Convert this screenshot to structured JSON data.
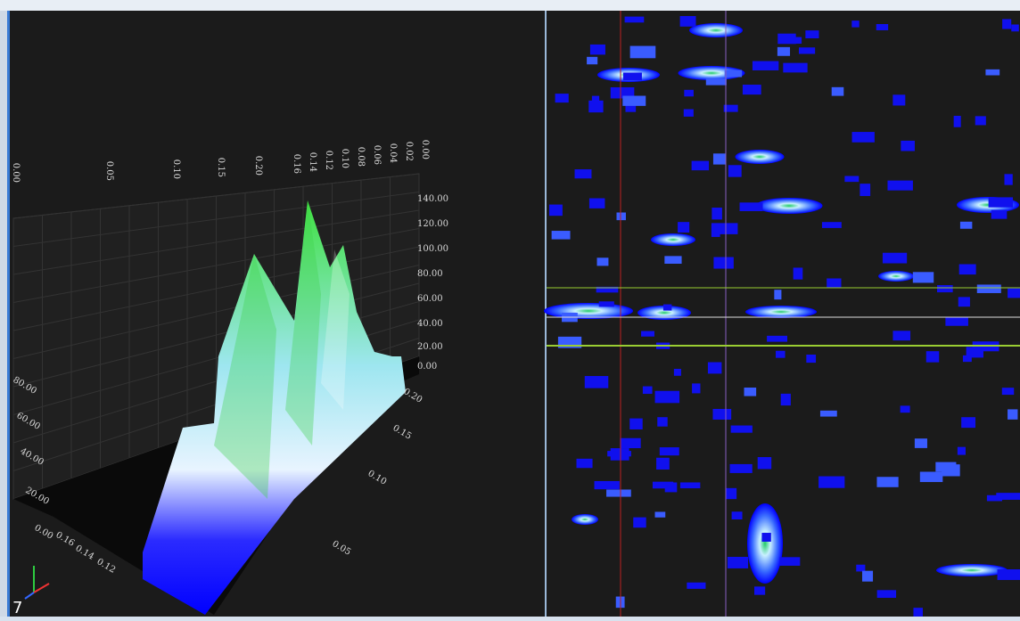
{
  "surface_view": {
    "top_axis_labels": [
      "0.00",
      "0.05",
      "0.10",
      "0.15",
      "0.20",
      "0.16",
      "0.14",
      "0.12",
      "0.10",
      "0.08",
      "0.06",
      "0.04",
      "0.02",
      "0.00"
    ],
    "height_axis_labels": [
      "140.00",
      "120.00",
      "100.00",
      "80.00",
      "60.00",
      "40.00",
      "20.00",
      "0.00"
    ],
    "floor_axis_labels": [
      "0.20",
      "0.15",
      "0.10",
      "0.05"
    ],
    "left_axis_labels": [
      "80.00",
      "60.00",
      "40.00",
      "20.00",
      "0.00"
    ],
    "left_floor_labels": [
      "0.16",
      "0.14",
      "0.12"
    ]
  },
  "status": {
    "corner_text": "7"
  }
}
